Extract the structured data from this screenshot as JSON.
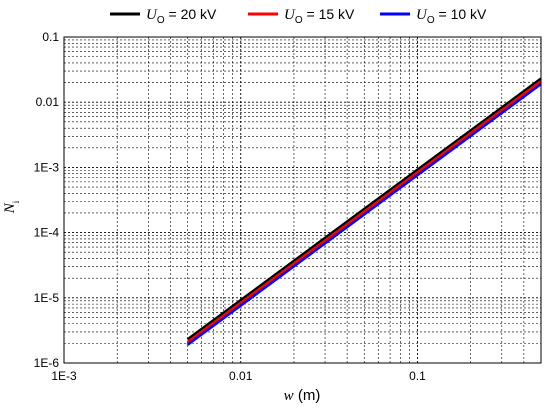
{
  "chart_data": {
    "type": "line",
    "x_scale": "log",
    "y_scale": "log",
    "xlim": [
      0.001,
      0.5
    ],
    "ylim": [
      1e-06,
      0.1
    ],
    "grid": true,
    "legend_position": "top",
    "xlabel": {
      "var": "w",
      "unit": " (m)"
    },
    "ylabel": {
      "var": "N",
      "sub": "i"
    },
    "x_ticks": [
      {
        "value": 0.001,
        "label": "1E-3"
      },
      {
        "value": 0.01,
        "label": "0.01"
      },
      {
        "value": 0.1,
        "label": "0.1"
      }
    ],
    "y_ticks": [
      {
        "value": 0.1,
        "label": "0.1"
      },
      {
        "value": 0.01,
        "label": "0.01"
      },
      {
        "value": 0.001,
        "label": "1E-3"
      },
      {
        "value": 0.0001,
        "label": "1E-4"
      },
      {
        "value": 1e-05,
        "label": "1E-5"
      },
      {
        "value": 1e-06,
        "label": "1E-6"
      }
    ],
    "series": [
      {
        "name": {
          "var": "U",
          "sub": "O",
          "rest": " = 20 kV"
        },
        "color": "#000000",
        "x": [
          0.005,
          0.5
        ],
        "y": [
          2.3e-06,
          0.023
        ]
      },
      {
        "name": {
          "var": "U",
          "sub": "O",
          "rest": " = 15 kV"
        },
        "color": "#ff0000",
        "x": [
          0.005,
          0.5
        ],
        "y": [
          2.1e-06,
          0.021
        ]
      },
      {
        "name": {
          "var": "U",
          "sub": "O",
          "rest": " = 10 kV"
        },
        "color": "#0000ff",
        "x": [
          0.005,
          0.5
        ],
        "y": [
          1.9e-06,
          0.019
        ]
      }
    ]
  }
}
